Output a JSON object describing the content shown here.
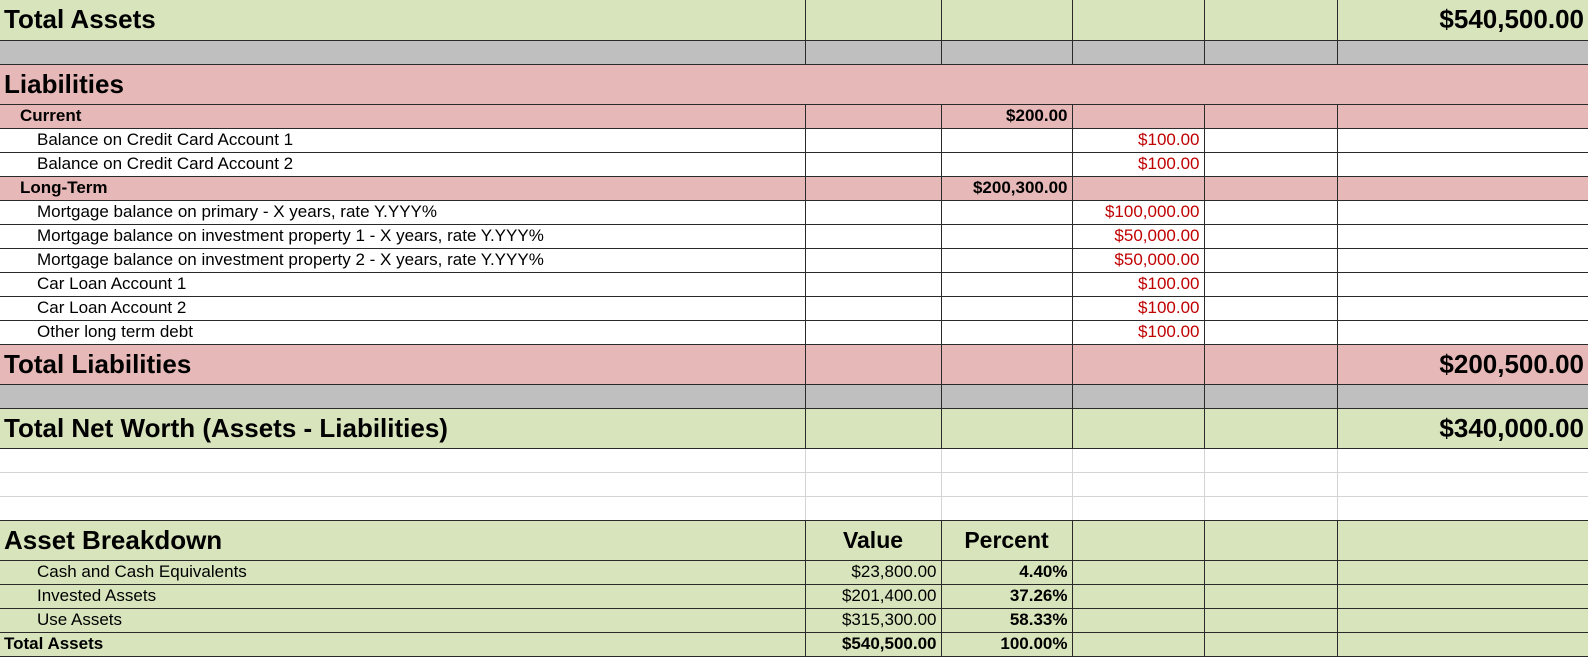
{
  "assets_total": {
    "label": "Total Assets",
    "value": "$540,500.00"
  },
  "liabilities": {
    "heading": "Liabilities",
    "current": {
      "label": "Current",
      "subtotal": "$200.00",
      "items": [
        {
          "label": "Balance on Credit Card Account 1",
          "value": "$100.00"
        },
        {
          "label": "Balance on Credit Card Account 2",
          "value": "$100.00"
        }
      ]
    },
    "long_term": {
      "label": "Long-Term",
      "subtotal": "$200,300.00",
      "items": [
        {
          "label": "Mortgage balance on primary - X years, rate Y.YYY%",
          "value": "$100,000.00"
        },
        {
          "label": "Mortgage balance on investment property 1 - X years, rate Y.YYY%",
          "value": "$50,000.00"
        },
        {
          "label": "Mortgage balance on investment property 2 - X years, rate Y.YYY%",
          "value": "$50,000.00"
        },
        {
          "label": "Car Loan Account 1",
          "value": "$100.00"
        },
        {
          "label": "Car Loan Account 2",
          "value": "$100.00"
        },
        {
          "label": "Other long term debt",
          "value": "$100.00"
        }
      ]
    },
    "total": {
      "label": "Total Liabilities",
      "value": "$200,500.00"
    }
  },
  "net_worth": {
    "label": "Total Net Worth (Assets - Liabilities)",
    "value": "$340,000.00"
  },
  "breakdown": {
    "heading": "Asset Breakdown",
    "value_header": "Value",
    "percent_header": "Percent",
    "rows": [
      {
        "label": "Cash and Cash Equivalents",
        "value": "$23,800.00",
        "percent": "4.40%"
      },
      {
        "label": "Invested Assets",
        "value": "$201,400.00",
        "percent": "37.26%"
      },
      {
        "label": "Use Assets",
        "value": "$315,300.00",
        "percent": "58.33%"
      }
    ],
    "total": {
      "label": "Total Assets",
      "value": "$540,500.00",
      "percent": "100.00%"
    }
  },
  "colors": {
    "green": "#d8e4bc",
    "pink": "#e6b8b7",
    "gray": "#bfbfbf",
    "negative": "#c00000"
  }
}
